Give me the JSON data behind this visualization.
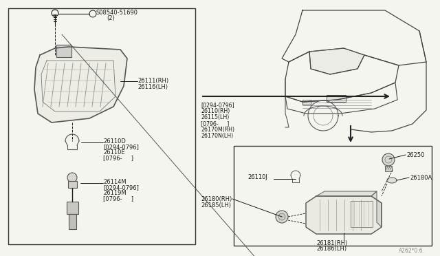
{
  "bg_color": "#f5f5f0",
  "border_color": "#000000",
  "text_color": "#1a1a1a",
  "fig_width": 6.4,
  "fig_height": 3.72,
  "dpi": 100,
  "left_box": {
    "label_screw": "S08540-51690",
    "label_screw2": "(2)",
    "label_lens_rh": "26111(RH)",
    "label_lens_lh": "26116(LH)",
    "label_bulb1": "26110D",
    "label_bulb2": "[0294-0796]",
    "label_bulb3": "26110E",
    "label_bulb4": "[0796-     ]",
    "label_socket1": "26114M",
    "label_socket2": "[0294-0796]",
    "label_socket3": "26119M",
    "label_socket4": "[0796-     ]"
  },
  "center_labels": [
    "[0294-0796]",
    "26110(RH)",
    "26115(LH)",
    "[0796-     ]",
    "26170M(RH)",
    "26170N(LH)"
  ],
  "right_box": {
    "label_26250": "26250",
    "label_26180A": "26180A",
    "label_26110J": "26110J",
    "label_26181": "26181(RH)",
    "label_26186": "26186(LH)",
    "label_26180rh": "26180(RH)",
    "label_26185lh": "26185(LH)"
  },
  "watermark": "A262*0.6."
}
